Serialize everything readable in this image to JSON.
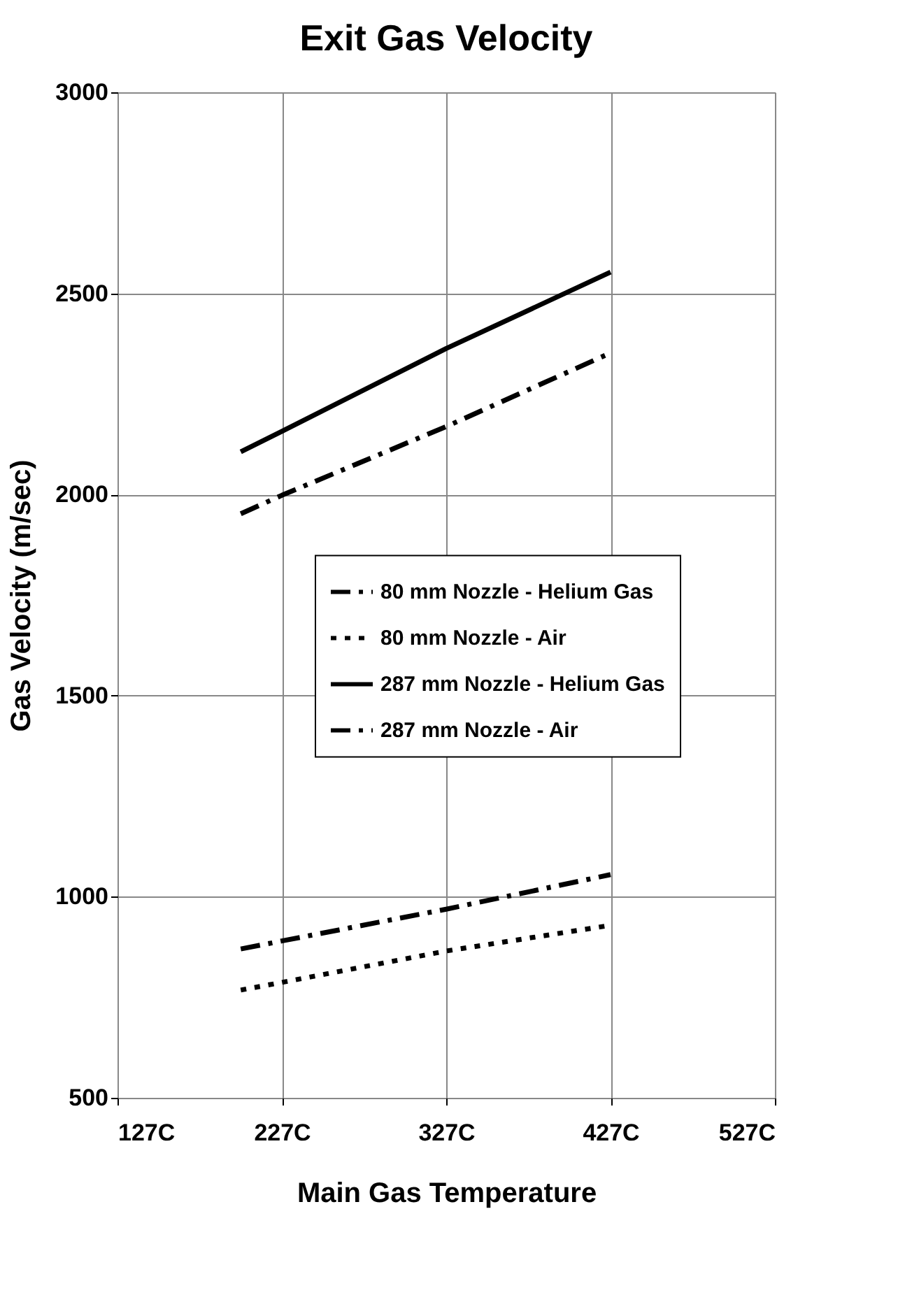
{
  "chart_data": {
    "type": "line",
    "title": "Exit Gas Velocity",
    "xlabel": "Main Gas Temperature",
    "ylabel": "Gas Velocity (m/sec)",
    "x": [
      202,
      227,
      327,
      427
    ],
    "series": [
      {
        "name": "80 mm Nozzle - Helium Gas",
        "color": "#000000",
        "line_style": "dashed",
        "values": [
          1952,
          1998,
          2169,
          2352
        ]
      },
      {
        "name": "80  mm Nozzle - Air",
        "color": "#000000",
        "line_style": "dotted",
        "values": [
          768,
          787,
          865,
          929
        ]
      },
      {
        "name": "287 mm Nozzle - Helium Gas",
        "color": "#000000",
        "line_style": "solid",
        "values": [
          2106,
          2157,
          2363,
          2553
        ]
      },
      {
        "name": "287 mm Nozzle - Air",
        "color": "#000000",
        "line_style": "dashed",
        "values": [
          870,
          890,
          969,
          1055
        ]
      }
    ],
    "xlim": [
      127,
      527
    ],
    "xticks": [
      {
        "value": 127,
        "label": "127C"
      },
      {
        "value": 227,
        "label": "227C"
      },
      {
        "value": 327,
        "label": "327C"
      },
      {
        "value": 427,
        "label": "427C"
      },
      {
        "value": 527,
        "label": "527C"
      }
    ],
    "ylim": [
      500,
      3000
    ],
    "yticks": [
      500,
      1000,
      1500,
      2000,
      2500,
      3000
    ],
    "grid": true,
    "legend": "right",
    "marker": "none"
  }
}
